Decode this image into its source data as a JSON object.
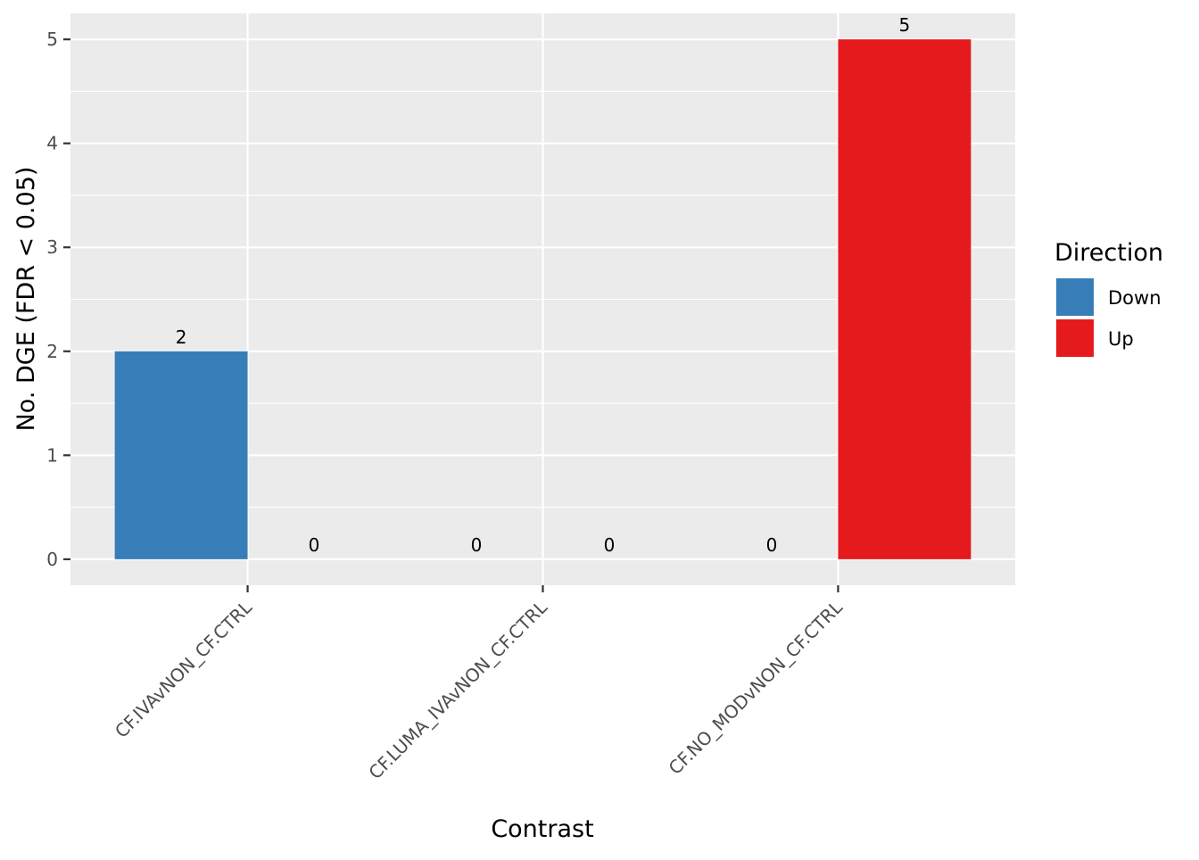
{
  "chart_data": {
    "type": "bar",
    "layout": "dodged",
    "categories": [
      "CF.IVAvNON_CF.CTRL",
      "CF.LUMA_IVAvNON_CF.CTRL",
      "CF.NO_MODvNON_CF.CTRL"
    ],
    "series": [
      {
        "name": "Down",
        "color": "#377EB8",
        "values": [
          2,
          0,
          0
        ]
      },
      {
        "name": "Up",
        "color": "#E41A1C",
        "values": [
          0,
          0,
          5
        ]
      }
    ],
    "bar_labels": [
      [
        "2",
        "0",
        "0"
      ],
      [
        "0",
        "0",
        "5"
      ]
    ],
    "xlabel": "Contrast",
    "ylabel": "No. DGE (FDR < 0.05)",
    "ylim": [
      -0.25,
      5.25
    ],
    "yticks": [
      0,
      1,
      2,
      3,
      4,
      5
    ],
    "grid": true,
    "legend": {
      "title": "Direction",
      "position": "right",
      "entries": [
        "Down",
        "Up"
      ]
    },
    "colors": {
      "panel_background": "#EBEBEB",
      "grid": "#FFFFFF"
    }
  }
}
